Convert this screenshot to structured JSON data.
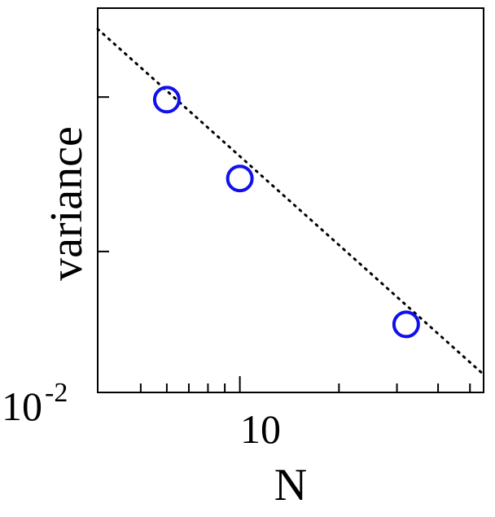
{
  "chart_data": {
    "type": "scatter",
    "xscale": "log",
    "yscale": "log",
    "xlabel": "N",
    "ylabel": "variance",
    "xlim": [
      3.7,
      55
    ],
    "ylim": [
      0.01,
      0.2
    ],
    "y_tick_label": {
      "base": "10",
      "exponent": "-2",
      "value": 0.01
    },
    "x_tick_label": {
      "text": "10",
      "value": 10
    },
    "x_minor_ticks": [
      5,
      6,
      7,
      8,
      9,
      20,
      30,
      40,
      50
    ],
    "y_minor_ticks": [
      0.03,
      0.1
    ],
    "grid": false,
    "legend": "none",
    "series": [
      {
        "marker": "open-circle",
        "color": "#1010ee",
        "points": [
          {
            "x": 6,
            "y": 0.098
          },
          {
            "x": 10,
            "y": 0.053
          },
          {
            "x": 32,
            "y": 0.017
          }
        ]
      }
    ],
    "reference_line": {
      "style": "dotted",
      "color": "#000000",
      "points": [
        {
          "x": 3.7,
          "y": 0.17
        },
        {
          "x": 55,
          "y": 0.0115
        }
      ]
    }
  }
}
